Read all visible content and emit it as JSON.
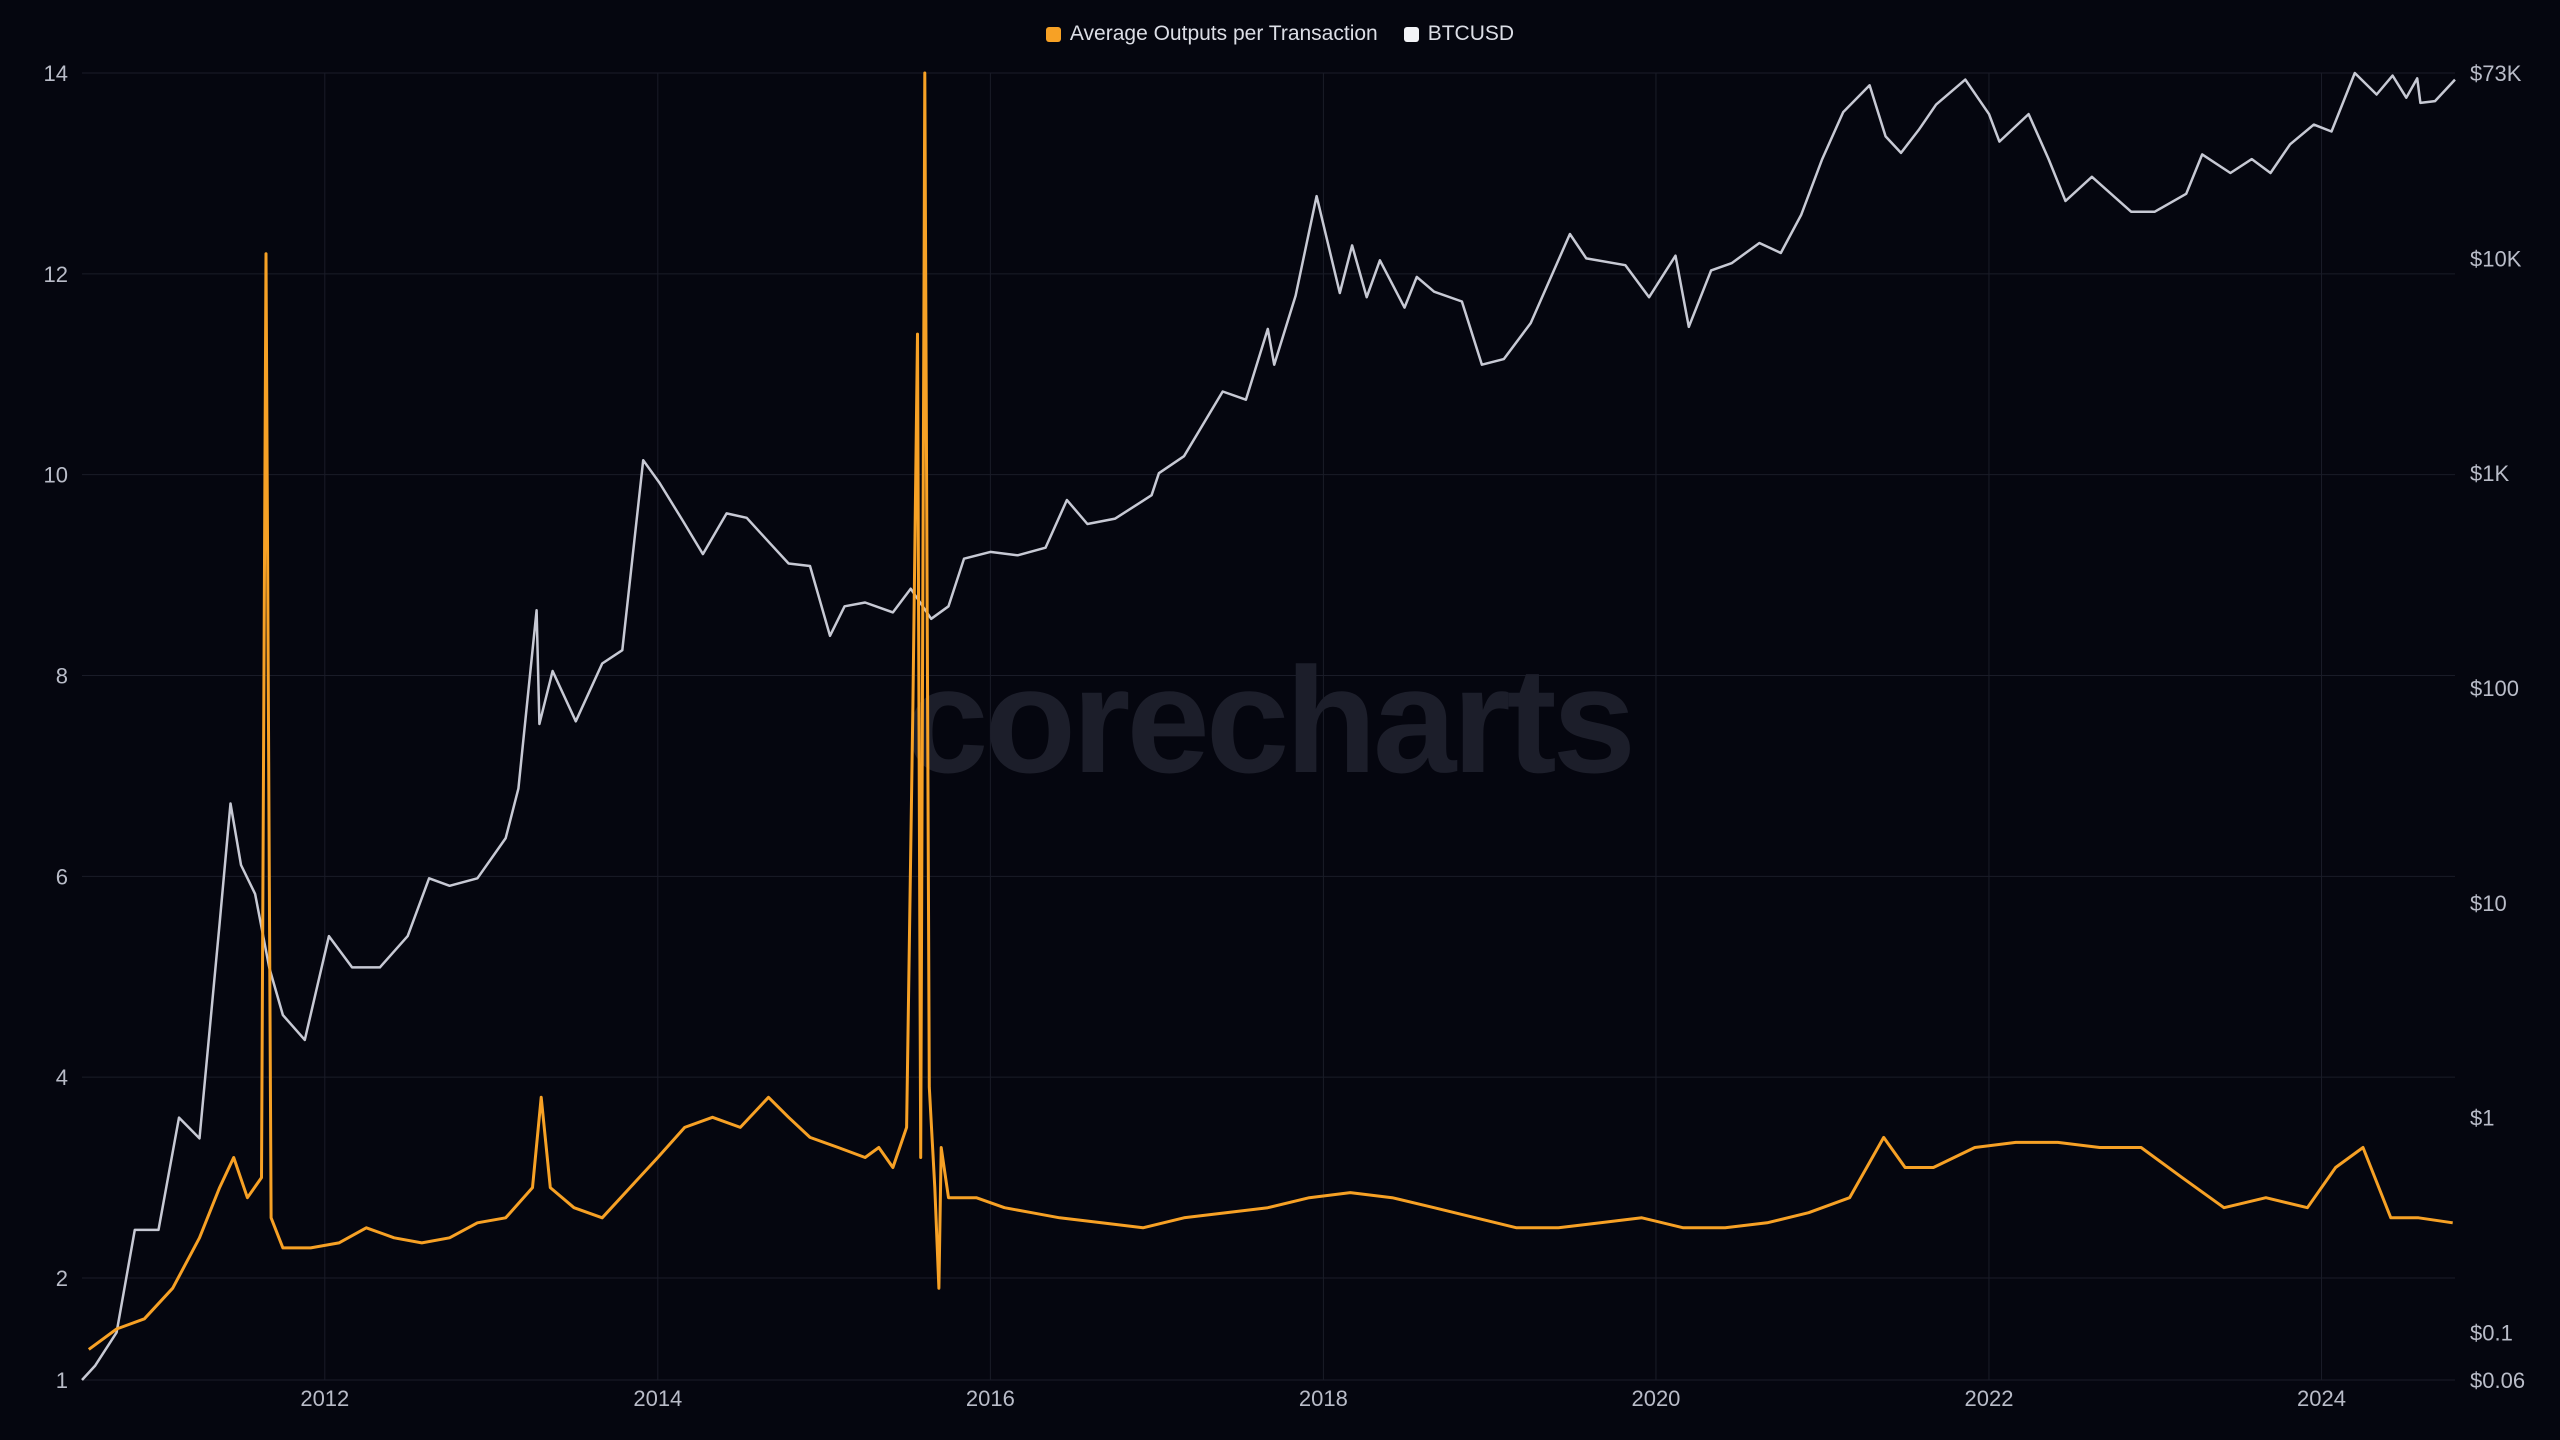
{
  "legend": {
    "series1_label": "Average Outputs per Transaction",
    "series2_label": "BTCUSD"
  },
  "watermark": "corecharts",
  "colors": {
    "background": "#05060f",
    "grid": "#1a1c28",
    "outputs": "#f7a125",
    "btcusd": "#c7c9d4"
  },
  "chart_data": {
    "type": "line",
    "x_axis": {
      "type": "date",
      "range": [
        "2010-07-17",
        "2024-10-20"
      ],
      "tick_labels": [
        "2012",
        "2014",
        "2016",
        "2018",
        "2020",
        "2022",
        "2024"
      ]
    },
    "y_left": {
      "range": [
        1,
        14
      ],
      "tick_labels": [
        "1",
        "2",
        "4",
        "6",
        "8",
        "10",
        "12",
        "14"
      ],
      "ticks": [
        1,
        2,
        4,
        6,
        8,
        10,
        12,
        14
      ]
    },
    "y_right": {
      "scale": "log",
      "range": [
        0.06,
        73000
      ],
      "tick_labels": [
        "$0.06",
        "$0.1",
        "$1",
        "$10",
        "$100",
        "$1K",
        "$10K",
        "$73K"
      ],
      "ticks": [
        0.06,
        0.1,
        1,
        10,
        100,
        1000,
        10000,
        73000
      ]
    },
    "grid": true,
    "legend_position": "top-center",
    "series": [
      {
        "name": "Average Outputs per Transaction",
        "axis": "left",
        "x": [
          "2010-08-01",
          "2010-10-01",
          "2010-12-01",
          "2011-02-01",
          "2011-04-01",
          "2011-05-15",
          "2011-06-15",
          "2011-07-15",
          "2011-08-15",
          "2011-08-25",
          "2011-09-05",
          "2011-10-01",
          "2011-12-01",
          "2012-02-01",
          "2012-04-01",
          "2012-06-01",
          "2012-08-01",
          "2012-10-01",
          "2012-12-01",
          "2013-02-01",
          "2013-04-01",
          "2013-04-20",
          "2013-05-10",
          "2013-07-01",
          "2013-09-01",
          "2013-11-01",
          "2014-01-01",
          "2014-03-01",
          "2014-05-01",
          "2014-07-01",
          "2014-09-01",
          "2014-10-15",
          "2014-12-01",
          "2015-02-01",
          "2015-04-01",
          "2015-05-01",
          "2015-06-01",
          "2015-07-01",
          "2015-07-15",
          "2015-07-25",
          "2015-08-01",
          "2015-08-10",
          "2015-08-20",
          "2015-09-01",
          "2015-09-10",
          "2015-09-15",
          "2015-10-01",
          "2015-12-01",
          "2016-02-01",
          "2016-04-01",
          "2016-06-01",
          "2016-09-01",
          "2016-12-01",
          "2017-03-01",
          "2017-06-01",
          "2017-09-01",
          "2017-12-01",
          "2018-03-01",
          "2018-06-01",
          "2018-09-01",
          "2018-12-01",
          "2019-03-01",
          "2019-06-01",
          "2019-09-01",
          "2019-12-01",
          "2020-03-01",
          "2020-06-01",
          "2020-09-01",
          "2020-12-01",
          "2021-03-01",
          "2021-05-15",
          "2021-07-01",
          "2021-09-01",
          "2021-12-01",
          "2022-03-01",
          "2022-06-01",
          "2022-09-01",
          "2022-12-01",
          "2023-03-01",
          "2023-06-01",
          "2023-09-01",
          "2023-12-01",
          "2024-02-01",
          "2024-04-01",
          "2024-06-01",
          "2024-08-01",
          "2024-10-15"
        ],
        "values": [
          1.3,
          1.5,
          1.6,
          1.9,
          2.4,
          2.9,
          3.2,
          2.8,
          3.0,
          12.2,
          2.6,
          2.3,
          2.3,
          2.35,
          2.5,
          2.4,
          2.35,
          2.4,
          2.55,
          2.6,
          2.9,
          3.8,
          2.9,
          2.7,
          2.6,
          2.9,
          3.2,
          3.5,
          3.6,
          3.5,
          3.8,
          3.6,
          3.4,
          3.3,
          3.2,
          3.3,
          3.1,
          3.5,
          7.7,
          11.4,
          3.2,
          14.0,
          3.9,
          2.9,
          1.9,
          3.3,
          2.8,
          2.8,
          2.7,
          2.65,
          2.6,
          2.55,
          2.5,
          2.6,
          2.65,
          2.7,
          2.8,
          2.85,
          2.8,
          2.7,
          2.6,
          2.5,
          2.5,
          2.55,
          2.6,
          2.5,
          2.5,
          2.55,
          2.65,
          2.8,
          3.4,
          3.1,
          3.1,
          3.3,
          3.35,
          3.35,
          3.3,
          3.3,
          3.0,
          2.7,
          2.8,
          2.7,
          3.1,
          3.3,
          2.6,
          2.6,
          2.55
        ]
      },
      {
        "name": "BTCUSD",
        "axis": "right",
        "x": [
          "2010-07-17",
          "2010-08-15",
          "2010-10-01",
          "2010-11-10",
          "2011-01-01",
          "2011-02-15",
          "2011-04-01",
          "2011-05-15",
          "2011-06-08",
          "2011-07-01",
          "2011-08-01",
          "2011-09-01",
          "2011-10-01",
          "2011-11-18",
          "2012-01-10",
          "2012-03-01",
          "2012-05-01",
          "2012-07-01",
          "2012-08-17",
          "2012-10-01",
          "2012-12-01",
          "2013-02-01",
          "2013-03-01",
          "2013-04-10",
          "2013-04-16",
          "2013-05-15",
          "2013-07-05",
          "2013-09-01",
          "2013-10-15",
          "2013-11-30",
          "2014-01-05",
          "2014-02-25",
          "2014-04-10",
          "2014-06-01",
          "2014-07-15",
          "2014-09-01",
          "2014-10-15",
          "2014-12-01",
          "2015-01-14",
          "2015-02-15",
          "2015-04-01",
          "2015-06-01",
          "2015-07-10",
          "2015-08-24",
          "2015-10-01",
          "2015-11-04",
          "2016-01-01",
          "2016-03-01",
          "2016-05-01",
          "2016-06-17",
          "2016-08-01",
          "2016-10-01",
          "2016-12-20",
          "2017-01-05",
          "2017-03-01",
          "2017-05-25",
          "2017-07-15",
          "2017-09-01",
          "2017-09-15",
          "2017-11-01",
          "2017-12-17",
          "2018-02-06",
          "2018-03-05",
          "2018-04-06",
          "2018-05-05",
          "2018-06-28",
          "2018-07-25",
          "2018-09-01",
          "2018-11-01",
          "2018-12-15",
          "2019-02-01",
          "2019-04-01",
          "2019-06-26",
          "2019-08-01",
          "2019-10-26",
          "2019-12-17",
          "2020-02-13",
          "2020-03-13",
          "2020-05-01",
          "2020-06-15",
          "2020-08-15",
          "2020-10-01",
          "2020-11-15",
          "2020-12-31",
          "2021-02-15",
          "2021-04-14",
          "2021-05-19",
          "2021-06-22",
          "2021-08-01",
          "2021-09-07",
          "2021-11-10",
          "2022-01-01",
          "2022-01-24",
          "2022-03-29",
          "2022-05-12",
          "2022-06-18",
          "2022-08-15",
          "2022-11-09",
          "2022-12-31",
          "2023-03-10",
          "2023-04-14",
          "2023-06-15",
          "2023-08-01",
          "2023-09-11",
          "2023-10-24",
          "2023-12-15",
          "2024-01-23",
          "2024-03-14",
          "2024-05-01",
          "2024-06-05",
          "2024-07-05",
          "2024-07-29",
          "2024-08-05",
          "2024-09-06",
          "2024-10-20"
        ],
        "values": [
          0.06,
          0.07,
          0.1,
          0.3,
          0.3,
          1.0,
          0.8,
          8.0,
          29.0,
          15.0,
          11.0,
          5.0,
          3.0,
          2.3,
          7.0,
          5.0,
          5.0,
          7.0,
          13.0,
          12.0,
          13.0,
          20.0,
          34.0,
          230.0,
          68.0,
          120.0,
          70.0,
          130.0,
          150.0,
          1150.0,
          900.0,
          600.0,
          420.0,
          650.0,
          620.0,
          480.0,
          380.0,
          370.0,
          175.0,
          240.0,
          250.0,
          225.0,
          290.0,
          210.0,
          240.0,
          400.0,
          430.0,
          415.0,
          450.0,
          750.0,
          580.0,
          615.0,
          790.0,
          1000.0,
          1200.0,
          2400.0,
          2200.0,
          4700.0,
          3200.0,
          6700.0,
          19500.0,
          6900.0,
          11500.0,
          6600.0,
          9800.0,
          5900.0,
          8200.0,
          7000.0,
          6300.0,
          3200.0,
          3400.0,
          5000.0,
          13000.0,
          10000.0,
          9300.0,
          6600.0,
          10300.0,
          4800.0,
          8800.0,
          9500.0,
          11800.0,
          10600.0,
          16000.0,
          29000.0,
          48000.0,
          64000.0,
          37000.0,
          31000.0,
          40000.0,
          52000.0,
          68000.0,
          47000.0,
          35000.0,
          47000.0,
          29000.0,
          18500.0,
          24000.0,
          16500.0,
          16500.0,
          20000.0,
          30500.0,
          25000.0,
          29000.0,
          25000.0,
          34000.0,
          42000.0,
          39000.0,
          73000.0,
          58000.0,
          71000.0,
          56000.0,
          69000.0,
          53000.0,
          54000.0,
          68000.0
        ]
      }
    ]
  }
}
